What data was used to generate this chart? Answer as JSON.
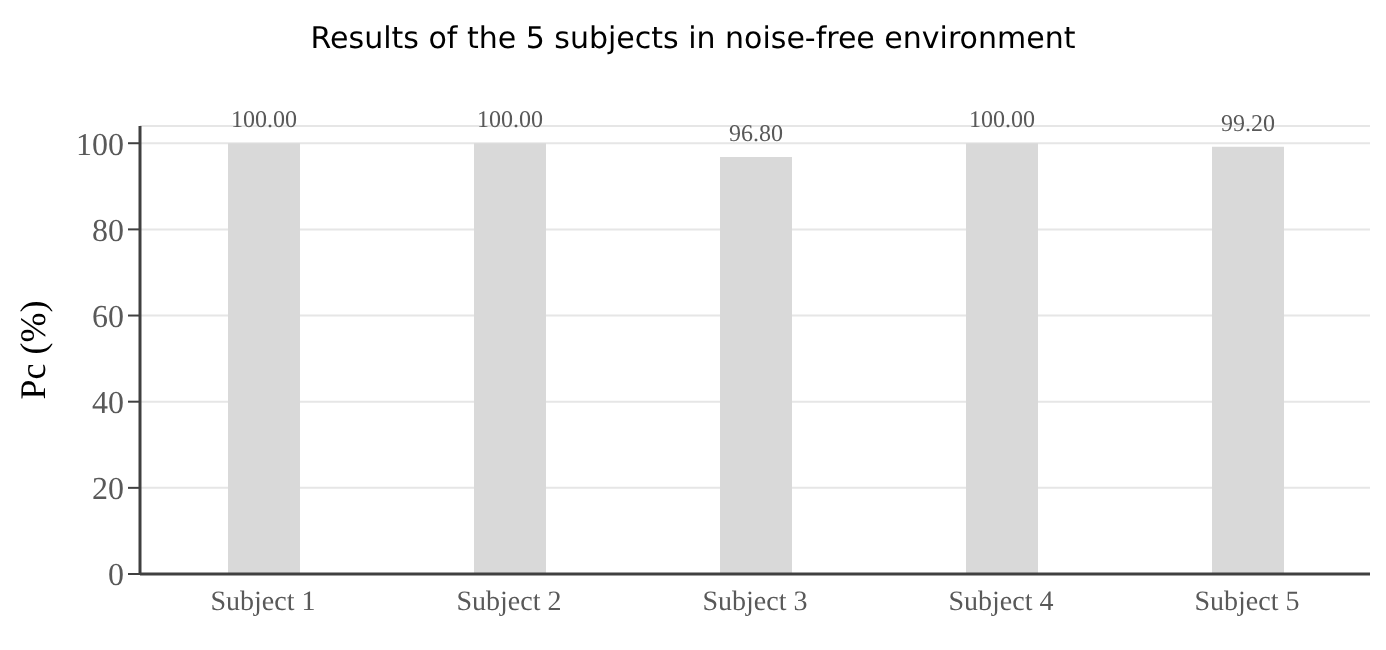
{
  "chart_data": {
    "type": "bar",
    "title": "Results of the 5 subjects in noise-free environment",
    "ylabel": "Pc (%)",
    "categories": [
      "Subject 1",
      "Subject 2",
      "Subject 3",
      "Subject 4",
      "Subject 5"
    ],
    "values": [
      100,
      100,
      96.8,
      100,
      99.2
    ],
    "value_labels": [
      "100.00",
      "100.00",
      "96.80",
      "100.00",
      "99.20"
    ],
    "color": "#d9d9d9",
    "ylim": [
      0,
      104
    ],
    "yticks": [
      0,
      20,
      40,
      60,
      80,
      100
    ],
    "grid": "y"
  }
}
